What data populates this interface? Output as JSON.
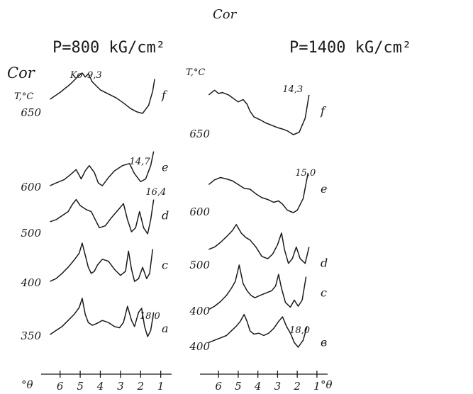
{
  "figure": {
    "header_label": "Cor",
    "axis_unit": "°θ",
    "temperature_label": "T,°C"
  },
  "chart_data": [
    {
      "type": "line",
      "title": "P=800 kG/cm²",
      "corner_label": "Cor",
      "xlabel": "°θ",
      "xlim": [
        6.8,
        0.6
      ],
      "x_ticks": [
        "6",
        "5",
        "4",
        "3",
        "2",
        "1"
      ],
      "y_label": "T,°C",
      "peak_labels": [
        {
          "text": "Ko",
          "x": 5.5
        },
        {
          "text": "9,3",
          "x": 4.65
        },
        {
          "text": "14,7",
          "x": 2.55
        },
        {
          "text": "16,4",
          "x": 1.75
        },
        {
          "text": "18,0",
          "x": 2.05
        }
      ],
      "series": [
        {
          "name": "f",
          "temperature": "650",
          "points": [
            [
              6.5,
              0.35
            ],
            [
              6.0,
              0.52
            ],
            [
              5.5,
              0.72
            ],
            [
              5.1,
              0.92
            ],
            [
              4.9,
              1.0
            ],
            [
              4.75,
              0.9
            ],
            [
              4.6,
              0.98
            ],
            [
              4.4,
              0.78
            ],
            [
              4.0,
              0.58
            ],
            [
              3.6,
              0.48
            ],
            [
              3.2,
              0.38
            ],
            [
              2.8,
              0.24
            ],
            [
              2.5,
              0.12
            ],
            [
              2.2,
              0.04
            ],
            [
              1.9,
              0.0
            ],
            [
              1.6,
              0.2
            ],
            [
              1.4,
              0.55
            ],
            [
              1.3,
              0.85
            ]
          ]
        },
        {
          "name": "e",
          "temperature": "600",
          "points": [
            [
              6.5,
              0.05
            ],
            [
              6.2,
              0.12
            ],
            [
              5.8,
              0.2
            ],
            [
              5.5,
              0.32
            ],
            [
              5.2,
              0.45
            ],
            [
              4.95,
              0.22
            ],
            [
              4.75,
              0.42
            ],
            [
              4.55,
              0.55
            ],
            [
              4.3,
              0.38
            ],
            [
              4.1,
              0.12
            ],
            [
              3.9,
              0.05
            ],
            [
              3.6,
              0.25
            ],
            [
              3.3,
              0.42
            ],
            [
              2.9,
              0.55
            ],
            [
              2.55,
              0.6
            ],
            [
              2.3,
              0.35
            ],
            [
              2.0,
              0.15
            ],
            [
              1.75,
              0.22
            ],
            [
              1.5,
              0.55
            ],
            [
              1.35,
              0.9
            ]
          ]
        },
        {
          "name": "d",
          "temperature": "500",
          "points": [
            [
              6.5,
              0.3
            ],
            [
              6.2,
              0.35
            ],
            [
              5.9,
              0.45
            ],
            [
              5.6,
              0.55
            ],
            [
              5.4,
              0.72
            ],
            [
              5.2,
              0.85
            ],
            [
              5.0,
              0.7
            ],
            [
              4.7,
              0.6
            ],
            [
              4.45,
              0.55
            ],
            [
              4.25,
              0.35
            ],
            [
              4.05,
              0.15
            ],
            [
              3.75,
              0.2
            ],
            [
              3.45,
              0.4
            ],
            [
              3.1,
              0.6
            ],
            [
              2.85,
              0.75
            ],
            [
              2.65,
              0.35
            ],
            [
              2.45,
              0.05
            ],
            [
              2.25,
              0.15
            ],
            [
              2.05,
              0.55
            ],
            [
              1.85,
              0.15
            ],
            [
              1.65,
              0.0
            ],
            [
              1.5,
              0.35
            ],
            [
              1.35,
              0.85
            ]
          ]
        },
        {
          "name": "c",
          "temperature": "400",
          "points": [
            [
              6.5,
              0.05
            ],
            [
              6.2,
              0.12
            ],
            [
              5.9,
              0.25
            ],
            [
              5.6,
              0.4
            ],
            [
              5.3,
              0.58
            ],
            [
              5.05,
              0.75
            ],
            [
              4.9,
              1.0
            ],
            [
              4.75,
              0.7
            ],
            [
              4.6,
              0.4
            ],
            [
              4.45,
              0.25
            ],
            [
              4.3,
              0.3
            ],
            [
              4.15,
              0.45
            ],
            [
              3.9,
              0.6
            ],
            [
              3.6,
              0.55
            ],
            [
              3.3,
              0.35
            ],
            [
              3.0,
              0.2
            ],
            [
              2.75,
              0.3
            ],
            [
              2.6,
              0.8
            ],
            [
              2.45,
              0.35
            ],
            [
              2.3,
              0.05
            ],
            [
              2.1,
              0.12
            ],
            [
              1.9,
              0.4
            ],
            [
              1.7,
              0.12
            ],
            [
              1.55,
              0.25
            ],
            [
              1.4,
              0.85
            ]
          ]
        },
        {
          "name": "a",
          "temperature": "350",
          "points": [
            [
              6.5,
              0.05
            ],
            [
              6.2,
              0.15
            ],
            [
              5.9,
              0.25
            ],
            [
              5.6,
              0.4
            ],
            [
              5.3,
              0.55
            ],
            [
              5.05,
              0.72
            ],
            [
              4.9,
              0.95
            ],
            [
              4.75,
              0.55
            ],
            [
              4.6,
              0.35
            ],
            [
              4.4,
              0.28
            ],
            [
              4.2,
              0.32
            ],
            [
              3.9,
              0.4
            ],
            [
              3.6,
              0.35
            ],
            [
              3.3,
              0.25
            ],
            [
              3.05,
              0.22
            ],
            [
              2.85,
              0.35
            ],
            [
              2.65,
              0.75
            ],
            [
              2.45,
              0.4
            ],
            [
              2.3,
              0.25
            ],
            [
              2.1,
              0.6
            ],
            [
              1.95,
              0.7
            ],
            [
              1.8,
              0.25
            ],
            [
              1.65,
              0.0
            ],
            [
              1.5,
              0.15
            ],
            [
              1.35,
              0.6
            ]
          ]
        }
      ]
    },
    {
      "type": "line",
      "title": "P=1400 kG/cm²",
      "corner_label": "Ko",
      "xlabel": "°θ",
      "xlim": [
        6.8,
        0.6
      ],
      "x_ticks": [
        "6",
        "5",
        "4",
        "3",
        "2",
        "1"
      ],
      "y_label": "T,°C",
      "peak_labels": [
        {
          "text": "14,3",
          "x": 2.75
        },
        {
          "text": "15,0",
          "x": 2.1
        },
        {
          "text": "18,0",
          "x": 2.4
        }
      ],
      "series": [
        {
          "name": "f",
          "temperature": "650",
          "points": [
            [
              6.5,
              0.85
            ],
            [
              6.2,
              0.95
            ],
            [
              6.0,
              0.88
            ],
            [
              5.8,
              0.9
            ],
            [
              5.5,
              0.85
            ],
            [
              5.0,
              0.7
            ],
            [
              4.75,
              0.75
            ],
            [
              4.55,
              0.65
            ],
            [
              4.4,
              0.5
            ],
            [
              4.2,
              0.38
            ],
            [
              3.9,
              0.32
            ],
            [
              3.6,
              0.25
            ],
            [
              3.3,
              0.2
            ],
            [
              3.0,
              0.15
            ],
            [
              2.75,
              0.12
            ],
            [
              2.5,
              0.08
            ],
            [
              2.2,
              0.0
            ],
            [
              1.9,
              0.05
            ],
            [
              1.6,
              0.35
            ],
            [
              1.4,
              0.85
            ]
          ]
        },
        {
          "name": "e",
          "temperature": "600",
          "points": [
            [
              6.5,
              0.6
            ],
            [
              6.2,
              0.7
            ],
            [
              5.9,
              0.75
            ],
            [
              5.6,
              0.72
            ],
            [
              5.3,
              0.68
            ],
            [
              5.0,
              0.6
            ],
            [
              4.7,
              0.52
            ],
            [
              4.4,
              0.5
            ],
            [
              4.1,
              0.4
            ],
            [
              3.8,
              0.32
            ],
            [
              3.5,
              0.28
            ],
            [
              3.2,
              0.22
            ],
            [
              2.95,
              0.25
            ],
            [
              2.75,
              0.18
            ],
            [
              2.5,
              0.05
            ],
            [
              2.2,
              0.0
            ],
            [
              2.0,
              0.05
            ],
            [
              1.7,
              0.3
            ],
            [
              1.45,
              0.85
            ]
          ]
        },
        {
          "name": "d",
          "temperature": "500",
          "points": [
            [
              6.5,
              0.35
            ],
            [
              6.2,
              0.4
            ],
            [
              5.9,
              0.5
            ],
            [
              5.6,
              0.62
            ],
            [
              5.3,
              0.75
            ],
            [
              5.1,
              0.88
            ],
            [
              4.85,
              0.7
            ],
            [
              4.6,
              0.6
            ],
            [
              4.4,
              0.55
            ],
            [
              4.1,
              0.4
            ],
            [
              3.8,
              0.2
            ],
            [
              3.5,
              0.15
            ],
            [
              3.25,
              0.25
            ],
            [
              3.0,
              0.45
            ],
            [
              2.8,
              0.7
            ],
            [
              2.65,
              0.35
            ],
            [
              2.45,
              0.05
            ],
            [
              2.25,
              0.15
            ],
            [
              2.05,
              0.4
            ],
            [
              1.85,
              0.15
            ],
            [
              1.6,
              0.05
            ],
            [
              1.4,
              0.4
            ]
          ]
        },
        {
          "name": "c",
          "temperature": "400",
          "points": [
            [
              6.5,
              0.05
            ],
            [
              6.2,
              0.12
            ],
            [
              5.9,
              0.22
            ],
            [
              5.6,
              0.35
            ],
            [
              5.35,
              0.5
            ],
            [
              5.15,
              0.65
            ],
            [
              4.95,
              1.0
            ],
            [
              4.75,
              0.6
            ],
            [
              4.55,
              0.45
            ],
            [
              4.35,
              0.35
            ],
            [
              4.15,
              0.3
            ],
            [
              3.9,
              0.35
            ],
            [
              3.6,
              0.4
            ],
            [
              3.3,
              0.45
            ],
            [
              3.1,
              0.55
            ],
            [
              2.95,
              0.8
            ],
            [
              2.8,
              0.5
            ],
            [
              2.6,
              0.2
            ],
            [
              2.35,
              0.1
            ],
            [
              2.15,
              0.25
            ],
            [
              1.95,
              0.12
            ],
            [
              1.75,
              0.25
            ],
            [
              1.55,
              0.75
            ]
          ]
        },
        {
          "name": "в",
          "temperature": "400",
          "points": [
            [
              6.5,
              0.1
            ],
            [
              6.2,
              0.15
            ],
            [
              5.9,
              0.2
            ],
            [
              5.6,
              0.25
            ],
            [
              5.35,
              0.35
            ],
            [
              5.1,
              0.45
            ],
            [
              4.9,
              0.55
            ],
            [
              4.7,
              0.7
            ],
            [
              4.55,
              0.55
            ],
            [
              4.4,
              0.35
            ],
            [
              4.2,
              0.28
            ],
            [
              3.95,
              0.3
            ],
            [
              3.7,
              0.25
            ],
            [
              3.45,
              0.3
            ],
            [
              3.2,
              0.4
            ],
            [
              2.95,
              0.55
            ],
            [
              2.75,
              0.65
            ],
            [
              2.55,
              0.45
            ],
            [
              2.35,
              0.3
            ],
            [
              2.15,
              0.1
            ],
            [
              1.95,
              0.0
            ],
            [
              1.7,
              0.15
            ],
            [
              1.5,
              0.45
            ]
          ]
        }
      ]
    }
  ]
}
